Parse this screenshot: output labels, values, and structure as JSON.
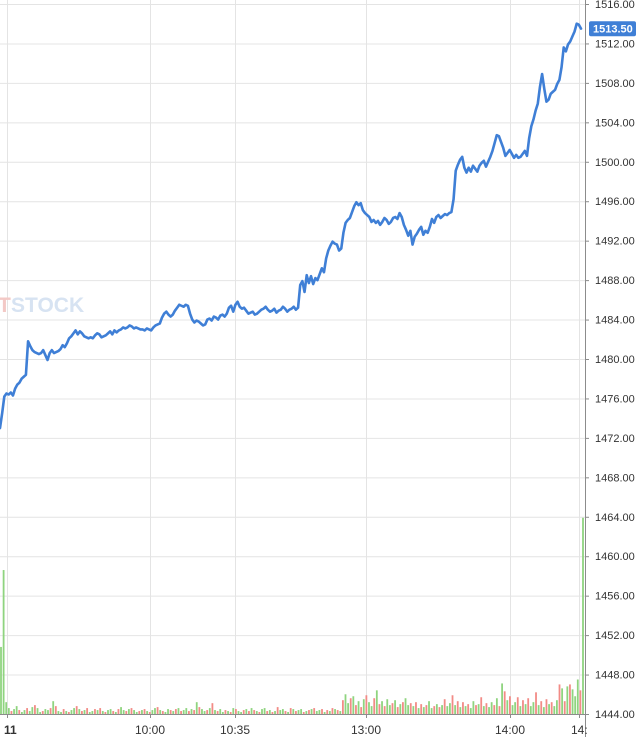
{
  "watermark": {
    "accent": "T",
    "main": "STOCK",
    "sub": ""
  },
  "chart_data": {
    "type": "line",
    "title": "",
    "ylim": [
      1444,
      1516
    ],
    "y_ticks": [
      1516,
      1512,
      1508,
      1504,
      1500,
      1496,
      1492,
      1488,
      1484,
      1480,
      1476,
      1472,
      1468,
      1464,
      1460,
      1456,
      1452,
      1448,
      1444
    ],
    "y_tick_labels": [
      "1516.00",
      "1512.00",
      "1508.00",
      "1504.00",
      "1500.00",
      "1496.00",
      "1492.00",
      "1488.00",
      "1484.00",
      "1480.00",
      "1476.00",
      "1472.00",
      "1468.00",
      "1464.00",
      "1460.00",
      "1456.00",
      "1452.00",
      "1448.00",
      "1444.00"
    ],
    "x_tick_labels": [
      "11",
      "10:00",
      "10:35",
      "13:00",
      "14:00",
      "14:"
    ],
    "last_price": "1513.50",
    "grid": true,
    "colors": {
      "price_line": "#3f7fd6",
      "volume_up": "#8fd47f",
      "volume_down": "#f28b86",
      "last_price_bg": "#3f7fd6",
      "grid": "#e4e4e4"
    },
    "series": [
      {
        "values": [
          1473.0,
          1474.5,
          1476.2,
          1476.5,
          1476.4,
          1476.6,
          1476.3,
          1477.0,
          1477.4,
          1477.6,
          1478.0,
          1478.2,
          1478.4,
          1481.8,
          1481.3,
          1480.9,
          1480.7,
          1480.6,
          1480.5,
          1480.6,
          1480.9,
          1480.4,
          1479.9,
          1480.6,
          1480.9,
          1480.6,
          1480.7,
          1480.8,
          1481.0,
          1481.4,
          1481.2,
          1481.6,
          1482.1,
          1482.3,
          1482.6,
          1482.9,
          1482.5,
          1482.8,
          1482.6,
          1482.3,
          1482.2,
          1482.1,
          1482.2,
          1482.1,
          1482.4,
          1482.6,
          1482.5,
          1482.2,
          1482.3,
          1482.4,
          1482.6,
          1482.8,
          1482.5,
          1482.9,
          1482.7,
          1482.9,
          1483.0,
          1483.2,
          1483.1,
          1483.2,
          1483.4,
          1483.3,
          1483.1,
          1483.2,
          1483.1,
          1483.0,
          1483.0,
          1482.9,
          1483.1,
          1483.0,
          1482.9,
          1483.2,
          1483.4,
          1483.5,
          1483.6,
          1484.2,
          1484.6,
          1484.8,
          1484.5,
          1484.3,
          1484.5,
          1484.9,
          1485.2,
          1485.5,
          1485.4,
          1485.3,
          1485.5,
          1485.4,
          1484.6,
          1484.0,
          1483.7,
          1483.9,
          1483.8,
          1483.6,
          1483.4,
          1483.5,
          1484.0,
          1484.1,
          1483.9,
          1484.3,
          1484.2,
          1484.0,
          1484.4,
          1484.5,
          1484.3,
          1484.6,
          1485.2,
          1485.4,
          1484.8,
          1485.5,
          1485.8,
          1485.3,
          1485.1,
          1485.2,
          1484.9,
          1484.6,
          1484.7,
          1484.8,
          1484.5,
          1484.6,
          1484.8,
          1485.0,
          1485.1,
          1485.3,
          1485.0,
          1484.8,
          1484.9,
          1485.1,
          1484.7,
          1484.9,
          1485.0,
          1485.3,
          1485.1,
          1484.8,
          1485.0,
          1485.1,
          1485.3,
          1485.0,
          1485.2,
          1487.5,
          1487.9,
          1486.8,
          1488.5,
          1487.7,
          1488.4,
          1487.6,
          1488.2,
          1488.0,
          1488.6,
          1489.2,
          1488.8,
          1490.2,
          1491.0,
          1491.5,
          1491.9,
          1491.7,
          1491.6,
          1491.0,
          1491.2,
          1492.8,
          1493.8,
          1494.1,
          1494.3,
          1494.9,
          1495.5,
          1495.9,
          1495.6,
          1495.8,
          1495.1,
          1494.8,
          1494.6,
          1494.4,
          1493.9,
          1494.1,
          1493.8,
          1494.0,
          1493.6,
          1493.9,
          1494.3,
          1494.1,
          1493.7,
          1493.9,
          1494.3,
          1494.4,
          1494.2,
          1494.8,
          1494.4,
          1493.6,
          1493.1,
          1492.5,
          1493.0,
          1491.6,
          1492.4,
          1492.7,
          1493.1,
          1493.4,
          1492.6,
          1493.0,
          1492.8,
          1493.4,
          1494.2,
          1493.8,
          1494.4,
          1494.6,
          1494.3,
          1494.5,
          1494.7,
          1494.6,
          1494.8,
          1494.9,
          1496.2,
          1499.1,
          1499.7,
          1500.2,
          1500.5,
          1499.4,
          1498.9,
          1499.4,
          1499.0,
          1499.6,
          1499.3,
          1499.0,
          1499.6,
          1499.9,
          1500.1,
          1499.5,
          1500.0,
          1500.5,
          1501.1,
          1501.9,
          1502.7,
          1502.6,
          1502.0,
          1501.4,
          1500.6,
          1500.9,
          1501.2,
          1500.8,
          1500.4,
          1500.7,
          1500.4,
          1500.5,
          1500.8,
          1501.1,
          1500.6,
          1502.4,
          1503.6,
          1504.3,
          1505.2,
          1505.9,
          1507.6,
          1508.9,
          1507.4,
          1506.1,
          1506.3,
          1506.9,
          1507.1,
          1507.3,
          1507.9,
          1508.3,
          1509.6,
          1511.6,
          1511.2,
          1511.9,
          1512.2,
          1512.7,
          1513.2,
          1514.0,
          1513.9,
          1513.5
        ]
      }
    ],
    "volume": {
      "ylim": [
        1444,
        1516
      ],
      "values": [
        1450.8,
        1458.6,
        1445.2,
        1444.6,
        1444.3,
        1444.5,
        1444.8,
        1444.4,
        1444.2,
        1444.4,
        1444.6,
        1444.3,
        1444.7,
        1444.9,
        1444.6,
        1444.2,
        1444.3,
        1444.5,
        1444.4,
        1444.6,
        1445.3,
        1444.8,
        1444.3,
        1444.2,
        1444.5,
        1444.3,
        1444.2,
        1444.4,
        1444.6,
        1444.8,
        1444.5,
        1444.3,
        1444.4,
        1444.6,
        1444.2,
        1444.3,
        1444.5,
        1444.4,
        1444.6,
        1444.3,
        1444.2,
        1444.4,
        1444.5,
        1444.3,
        1444.2,
        1444.5,
        1444.7,
        1444.4,
        1444.3,
        1444.5,
        1444.6,
        1444.4,
        1444.2,
        1444.3,
        1444.4,
        1444.5,
        1444.3,
        1444.2,
        1444.4,
        1444.6,
        1444.7,
        1444.4,
        1444.3,
        1444.2,
        1444.5,
        1444.4,
        1444.3,
        1444.5,
        1444.6,
        1444.3,
        1444.4,
        1444.6,
        1444.3,
        1444.5,
        1444.4,
        1445.2,
        1444.7,
        1444.5,
        1444.3,
        1444.4,
        1444.6,
        1445.1,
        1444.4,
        1444.3,
        1444.5,
        1444.2,
        1444.4,
        1444.3,
        1444.2,
        1444.6,
        1444.5,
        1444.3,
        1444.2,
        1444.4,
        1444.5,
        1444.3,
        1444.6,
        1444.4,
        1444.3,
        1444.2,
        1444.5,
        1444.6,
        1444.3,
        1444.4,
        1444.2,
        1444.3,
        1444.7,
        1444.4,
        1444.5,
        1444.3,
        1444.2,
        1444.6,
        1444.5,
        1444.3,
        1444.4,
        1444.5,
        1444.2,
        1444.3,
        1444.4,
        1444.5,
        1444.6,
        1444.3,
        1444.4,
        1444.5,
        1444.2,
        1444.4,
        1444.3,
        1444.6,
        1444.5,
        1444.4,
        1444.3,
        1445.4,
        1446.0,
        1445.1,
        1445.6,
        1445.8,
        1444.9,
        1445.3,
        1444.7,
        1445.5,
        1445.9,
        1445.2,
        1444.8,
        1445.6,
        1446.4,
        1445.0,
        1445.3,
        1444.8,
        1445.5,
        1444.9,
        1445.1,
        1445.4,
        1444.7,
        1445.0,
        1445.2,
        1445.6,
        1444.9,
        1445.1,
        1444.8,
        1445.2,
        1444.6,
        1445.0,
        1444.7,
        1444.9,
        1445.3,
        1444.6,
        1444.8,
        1445.0,
        1444.7,
        1444.9,
        1445.5,
        1444.8,
        1445.1,
        1445.9,
        1444.9,
        1445.3,
        1444.7,
        1445.2,
        1444.8,
        1445.0,
        1444.6,
        1445.3,
        1444.9,
        1445.0,
        1445.7,
        1444.8,
        1445.1,
        1444.7,
        1445.2,
        1444.9,
        1445.6,
        1444.8,
        1447.1,
        1446.3,
        1445.4,
        1445.8,
        1444.9,
        1445.2,
        1445.7,
        1444.8,
        1445.4,
        1445.0,
        1445.6,
        1444.8,
        1445.2,
        1446.2,
        1444.9,
        1445.3,
        1444.7,
        1445.5,
        1445.0,
        1445.2,
        1444.8,
        1445.4,
        1447.0,
        1446.6,
        1445.3,
        1446.8,
        1447.0,
        1446.5,
        1445.8,
        1447.5,
        1446.4,
        1463.9
      ],
      "colors": [
        "up",
        "up",
        "up",
        "up",
        "down",
        "up",
        "up",
        "down",
        "up",
        "up",
        "down",
        "up",
        "up",
        "down",
        "up",
        "up",
        "down",
        "up",
        "up",
        "down",
        "up",
        "down",
        "up",
        "up",
        "down",
        "up",
        "down",
        "up",
        "up",
        "down",
        "up",
        "down",
        "up",
        "down",
        "up",
        "up",
        "down",
        "up",
        "down",
        "up",
        "down",
        "up",
        "up",
        "down",
        "up",
        "down",
        "up",
        "up",
        "down",
        "up",
        "down",
        "up",
        "up",
        "down",
        "up",
        "down",
        "up",
        "down",
        "up",
        "up",
        "down",
        "up",
        "down",
        "up",
        "up",
        "down",
        "up",
        "down",
        "up",
        "down",
        "up",
        "up",
        "down",
        "up",
        "down",
        "up",
        "down",
        "up",
        "up",
        "down",
        "up",
        "down",
        "up",
        "down",
        "up",
        "up",
        "down",
        "up",
        "down",
        "up",
        "down",
        "up",
        "up",
        "down",
        "up",
        "down",
        "up",
        "down",
        "up",
        "down",
        "up",
        "up",
        "down",
        "up",
        "down",
        "up",
        "down",
        "up",
        "up",
        "down",
        "up",
        "down",
        "up",
        "down",
        "up",
        "up",
        "down",
        "up",
        "down",
        "up",
        "down",
        "up",
        "up",
        "down",
        "up",
        "down",
        "up",
        "down",
        "up",
        "down",
        "up",
        "down",
        "up",
        "up",
        "down",
        "up",
        "down",
        "up",
        "down",
        "up",
        "down",
        "up",
        "up",
        "down",
        "up",
        "down",
        "up",
        "down",
        "up",
        "up",
        "down",
        "up",
        "down",
        "up",
        "down",
        "up",
        "up",
        "down",
        "up",
        "down",
        "up",
        "down",
        "up",
        "down",
        "up",
        "up",
        "down",
        "up",
        "down",
        "up",
        "down",
        "up",
        "up",
        "down",
        "up",
        "down",
        "up",
        "down",
        "up",
        "down",
        "up",
        "up",
        "down",
        "up",
        "down",
        "up",
        "down",
        "up",
        "up",
        "down",
        "up",
        "down",
        "up",
        "down",
        "up",
        "down",
        "up",
        "up",
        "down",
        "up",
        "down",
        "up",
        "down",
        "up",
        "up",
        "down",
        "up",
        "down",
        "up",
        "down",
        "up",
        "down",
        "up",
        "up",
        "down",
        "up",
        "down",
        "up",
        "down",
        "up",
        "up",
        "up",
        "down",
        "up",
        "up",
        "up",
        "up",
        "up",
        "up"
      ]
    }
  }
}
